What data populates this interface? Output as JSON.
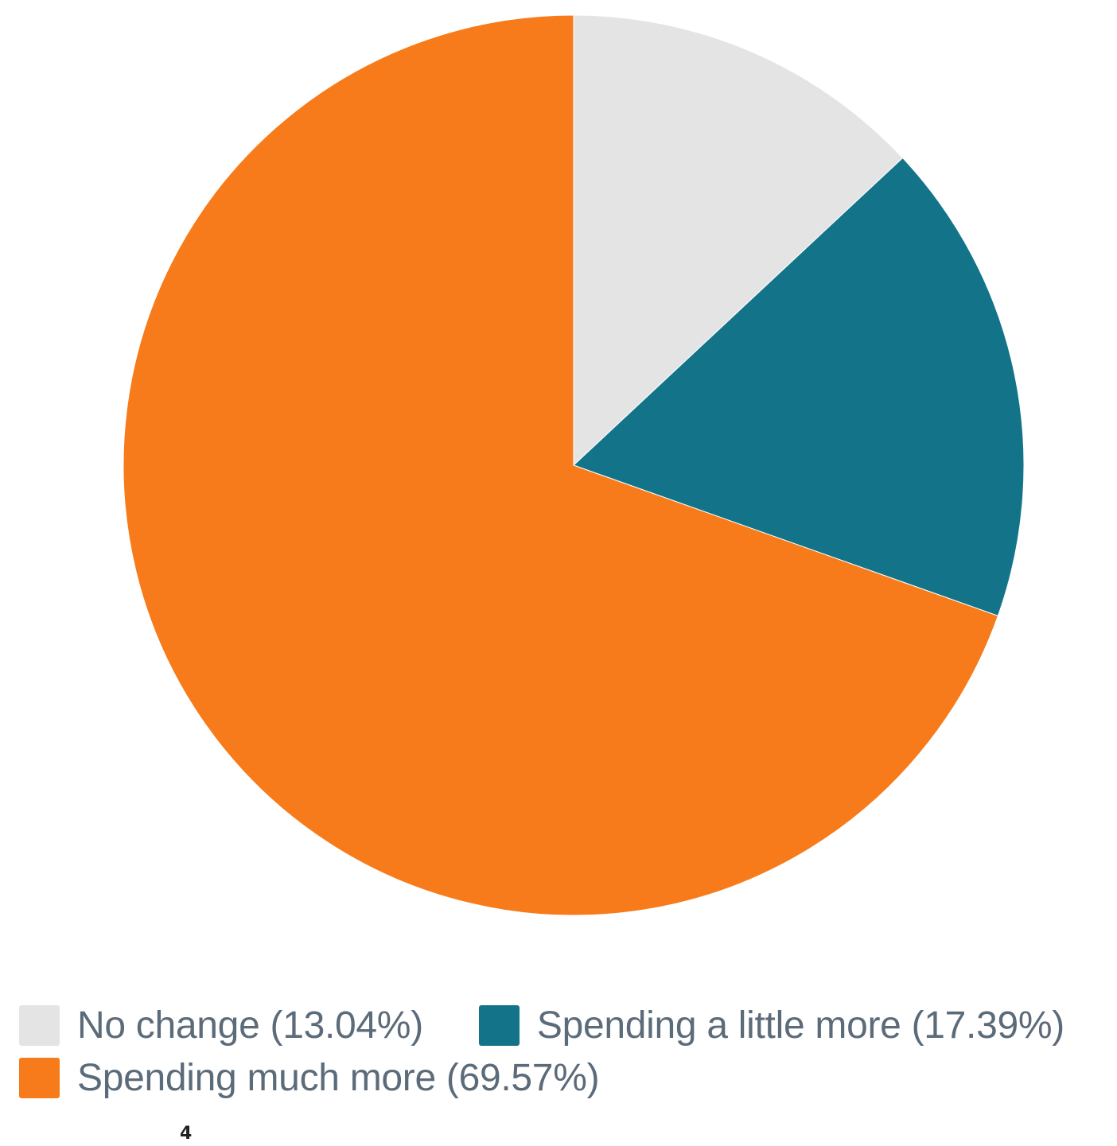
{
  "chart_data": {
    "type": "pie",
    "slices": [
      {
        "label": "No change",
        "value": 13.04,
        "color": "#e4e4e4",
        "legend": "No change (13.04%)"
      },
      {
        "label": "Spending a little more",
        "value": 17.39,
        "color": "#137489",
        "legend": "Spending a little more (17.39%)"
      },
      {
        "label": "Spending much more",
        "value": 69.57,
        "color": "#f77b1a",
        "legend": "Spending much more (69.57%)"
      }
    ],
    "start_angle": "12 o'clock",
    "direction": "clockwise",
    "legend_position": "bottom-left"
  },
  "footer": {
    "page_number": "4"
  }
}
